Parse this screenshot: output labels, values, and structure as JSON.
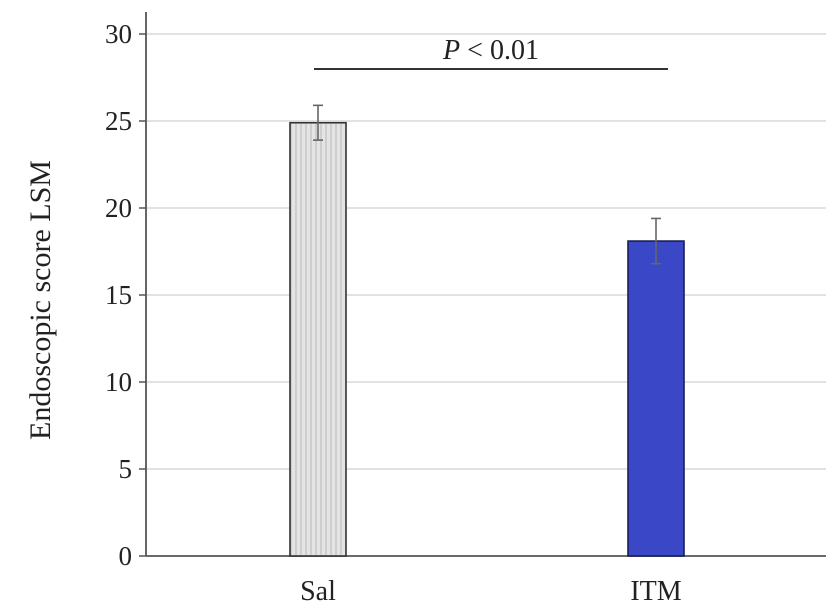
{
  "chart_data": {
    "type": "bar",
    "title": "",
    "xlabel": "",
    "ylabel": "Endoscopic score LSM",
    "categories": [
      "Sal",
      "ITM"
    ],
    "values": [
      24.9,
      18.1
    ],
    "error": [
      1.0,
      1.3
    ],
    "ylim": [
      0,
      30
    ],
    "yticks": [
      0,
      5,
      10,
      15,
      20,
      25,
      30
    ],
    "grid": true,
    "legend": "none",
    "bar_styles": [
      {
        "fill": "#dedede",
        "pattern": "vertical-hatch",
        "edge": "#333333"
      },
      {
        "fill": "#3a48c8",
        "pattern": "solid",
        "edge": "#1a1f55"
      }
    ],
    "annotation": {
      "italic_part": "P",
      "rest": " < 0.01",
      "from": "Sal",
      "to": "ITM"
    }
  }
}
